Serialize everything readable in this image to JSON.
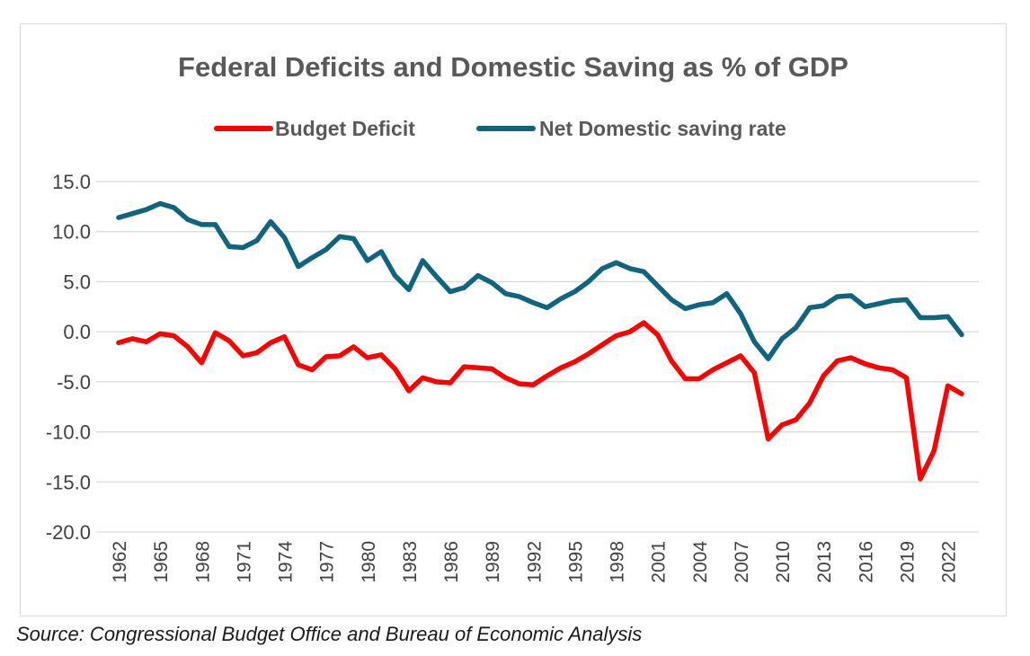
{
  "chart_data": {
    "type": "line",
    "title": "Federal Deficits and Domestic Saving as % of GDP",
    "xlabel": "",
    "ylabel": "",
    "ylim": [
      -20.0,
      15.0
    ],
    "y_ticks": [
      "15.0",
      "10.0",
      "5.0",
      "0.0",
      "-5.0",
      "-10.0",
      "-15.0",
      "-20.0"
    ],
    "x_ticks": [
      "1962",
      "1965",
      "1968",
      "1971",
      "1974",
      "1977",
      "1980",
      "1983",
      "1986",
      "1989",
      "1992",
      "1995",
      "1998",
      "2001",
      "2004",
      "2007",
      "2010",
      "2013",
      "2016",
      "2019",
      "2022"
    ],
    "x": [
      1962,
      1963,
      1964,
      1965,
      1966,
      1967,
      1968,
      1969,
      1970,
      1971,
      1972,
      1973,
      1974,
      1975,
      1976,
      1977,
      1978,
      1979,
      1980,
      1981,
      1982,
      1983,
      1984,
      1985,
      1986,
      1987,
      1988,
      1989,
      1990,
      1991,
      1992,
      1993,
      1994,
      1995,
      1996,
      1997,
      1998,
      1999,
      2000,
      2001,
      2002,
      2003,
      2004,
      2005,
      2006,
      2007,
      2008,
      2009,
      2010,
      2011,
      2012,
      2013,
      2014,
      2015,
      2016,
      2017,
      2018,
      2019,
      2020,
      2021,
      2022,
      2023
    ],
    "grid": true,
    "legend_position": "top",
    "series": [
      {
        "name": "Budget Deficit",
        "color": "#ff0000",
        "values": [
          -1.1,
          -0.7,
          -1.0,
          -0.2,
          -0.4,
          -1.5,
          -3.1,
          -0.1,
          -0.9,
          -2.4,
          -2.1,
          -1.1,
          -0.5,
          -3.3,
          -3.8,
          -2.5,
          -2.4,
          -1.5,
          -2.6,
          -2.3,
          -3.7,
          -5.9,
          -4.6,
          -5.0,
          -5.1,
          -3.5,
          -3.6,
          -3.7,
          -4.6,
          -5.2,
          -5.3,
          -4.4,
          -3.6,
          -3.0,
          -2.2,
          -1.3,
          -0.4,
          0.0,
          0.9,
          -0.3,
          -2.9,
          -4.7,
          -4.7,
          -3.8,
          -3.1,
          -2.4,
          -4.1,
          -10.7,
          -9.3,
          -8.8,
          -7.1,
          -4.4,
          -2.9,
          -2.6,
          -3.2,
          -3.6,
          -3.8,
          -4.6,
          -14.7,
          -11.9,
          -5.4,
          -6.2
        ]
      },
      {
        "name": "Net Domestic saving rate",
        "color": "#0f6480",
        "values": [
          11.4,
          11.8,
          12.2,
          12.8,
          12.4,
          11.2,
          10.7,
          10.7,
          8.5,
          8.4,
          9.1,
          11.0,
          9.4,
          6.5,
          7.4,
          8.2,
          9.5,
          9.3,
          7.1,
          8.0,
          5.6,
          4.2,
          7.1,
          5.5,
          4.0,
          4.4,
          5.6,
          4.9,
          3.8,
          3.5,
          2.9,
          2.4,
          3.3,
          4.0,
          5.0,
          6.3,
          6.9,
          6.3,
          6.0,
          4.6,
          3.2,
          2.3,
          2.7,
          2.9,
          3.8,
          1.8,
          -1.0,
          -2.7,
          -0.7,
          0.4,
          2.4,
          2.6,
          3.5,
          3.6,
          2.5,
          2.8,
          3.1,
          3.2,
          1.4,
          1.4,
          1.5,
          -0.3
        ]
      }
    ]
  },
  "source": "Source: Congressional Budget Office and Bureau of Economic Analysis"
}
